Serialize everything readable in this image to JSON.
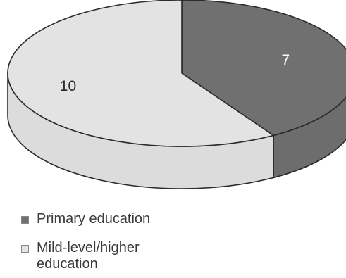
{
  "chart_data": {
    "type": "pie",
    "style": "3d",
    "slices": [
      {
        "label": "Primary education",
        "value": 7,
        "color": "#707070"
      },
      {
        "label": "Mild-level/higher education",
        "value": 10,
        "color": "#e3e3e3"
      }
    ],
    "data_labels": [
      "7",
      "10"
    ],
    "legend": {
      "position": "bottom-left",
      "items": [
        "Primary education",
        "Mild-level/higher\neducation"
      ]
    }
  }
}
